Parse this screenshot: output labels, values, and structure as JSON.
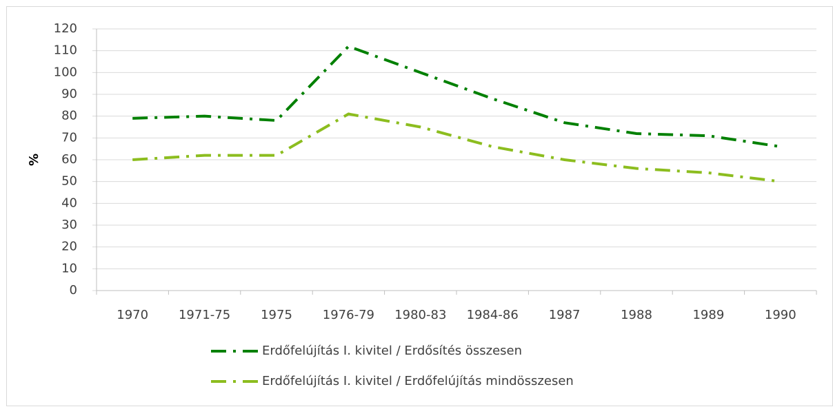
{
  "chart_data": {
    "type": "line",
    "y_label": "%",
    "categories": [
      "1970",
      "1971-75",
      "1975",
      "1976-79",
      "1980-83",
      "1984-86",
      "1987",
      "1988",
      "1989",
      "1990"
    ],
    "series": [
      {
        "name": "Erdőfelújítás I. kivitel / Erdősítés összesen",
        "color": "#008000",
        "values": [
          79,
          80,
          78,
          112,
          100,
          88,
          77,
          72,
          71,
          66
        ]
      },
      {
        "name": "Erdőfelújítás I. kivitel / Erdőfelújítás mindösszesen",
        "color": "#8cbd1f",
        "values": [
          60,
          62,
          62,
          81,
          75,
          66,
          60,
          56,
          54,
          50
        ]
      }
    ],
    "ylim": [
      0,
      120
    ],
    "yticks": [
      0,
      10,
      20,
      30,
      40,
      50,
      60,
      70,
      80,
      90,
      100,
      110,
      120
    ],
    "grid": true
  }
}
